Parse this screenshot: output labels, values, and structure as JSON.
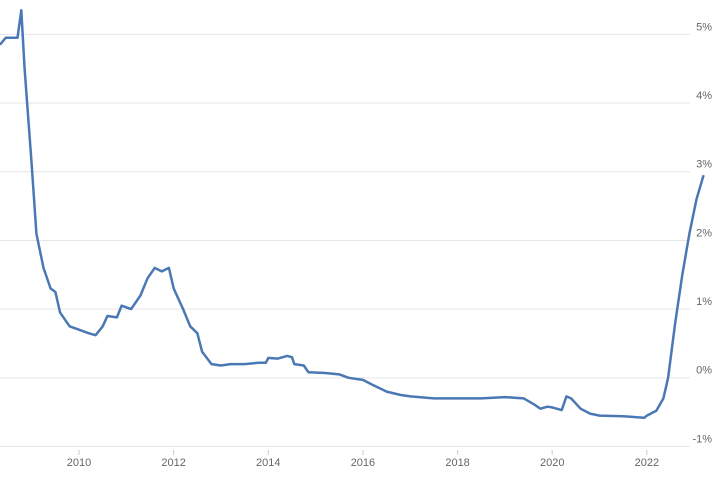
{
  "chart_data": {
    "type": "line",
    "x": [
      2008.33,
      2008.45,
      2008.7,
      2008.78,
      2008.85,
      2009.0,
      2009.1,
      2009.25,
      2009.4,
      2009.5,
      2009.6,
      2009.8,
      2010.0,
      2010.2,
      2010.35,
      2010.5,
      2010.6,
      2010.8,
      2010.9,
      2011.1,
      2011.3,
      2011.45,
      2011.6,
      2011.75,
      2011.9,
      2012.0,
      2012.2,
      2012.35,
      2012.5,
      2012.6,
      2012.8,
      2013.0,
      2013.2,
      2013.5,
      2013.8,
      2013.95,
      2014.0,
      2014.2,
      2014.4,
      2014.5,
      2014.55,
      2014.75,
      2014.85,
      2015.2,
      2015.5,
      2015.7,
      2016.0,
      2016.2,
      2016.5,
      2016.8,
      2017.0,
      2017.5,
      2018.0,
      2018.5,
      2019.0,
      2019.4,
      2019.6,
      2019.75,
      2019.9,
      2020.0,
      2020.2,
      2020.3,
      2020.4,
      2020.6,
      2020.8,
      2021.0,
      2021.5,
      2021.95,
      2022.0,
      2022.2,
      2022.35,
      2022.45,
      2022.6,
      2022.75,
      2022.9,
      2023.05,
      2023.2
    ],
    "values": [
      4.85,
      4.95,
      4.95,
      5.35,
      4.5,
      3.1,
      2.1,
      1.6,
      1.3,
      1.25,
      0.95,
      0.75,
      0.7,
      0.65,
      0.62,
      0.75,
      0.9,
      0.88,
      1.05,
      1.0,
      1.2,
      1.45,
      1.6,
      1.55,
      1.6,
      1.3,
      1.0,
      0.75,
      0.65,
      0.38,
      0.2,
      0.18,
      0.2,
      0.2,
      0.22,
      0.22,
      0.29,
      0.28,
      0.32,
      0.3,
      0.2,
      0.18,
      0.08,
      0.07,
      0.05,
      0.0,
      -0.03,
      -0.1,
      -0.2,
      -0.25,
      -0.27,
      -0.3,
      -0.3,
      -0.3,
      -0.28,
      -0.3,
      -0.38,
      -0.45,
      -0.42,
      -0.43,
      -0.47,
      -0.27,
      -0.3,
      -0.45,
      -0.52,
      -0.55,
      -0.56,
      -0.58,
      -0.55,
      -0.48,
      -0.3,
      0.0,
      0.8,
      1.5,
      2.1,
      2.6,
      2.95
    ],
    "color": "#4a78b4",
    "xlim": [
      2008.33,
      2023.25
    ],
    "xticks": [
      2010,
      2012,
      2014,
      2016,
      2018,
      2020,
      2022
    ],
    "ylim": [
      -1.1,
      5.5
    ],
    "yticks": [
      {
        "value": -1,
        "label": "-1%"
      },
      {
        "value": 0,
        "label": "0%"
      },
      {
        "value": 1,
        "label": "1%"
      },
      {
        "value": 2,
        "label": "2%"
      },
      {
        "value": 3,
        "label": "3%"
      },
      {
        "value": 4,
        "label": "4%"
      },
      {
        "value": 5,
        "label": "5%"
      }
    ],
    "grid": true
  }
}
